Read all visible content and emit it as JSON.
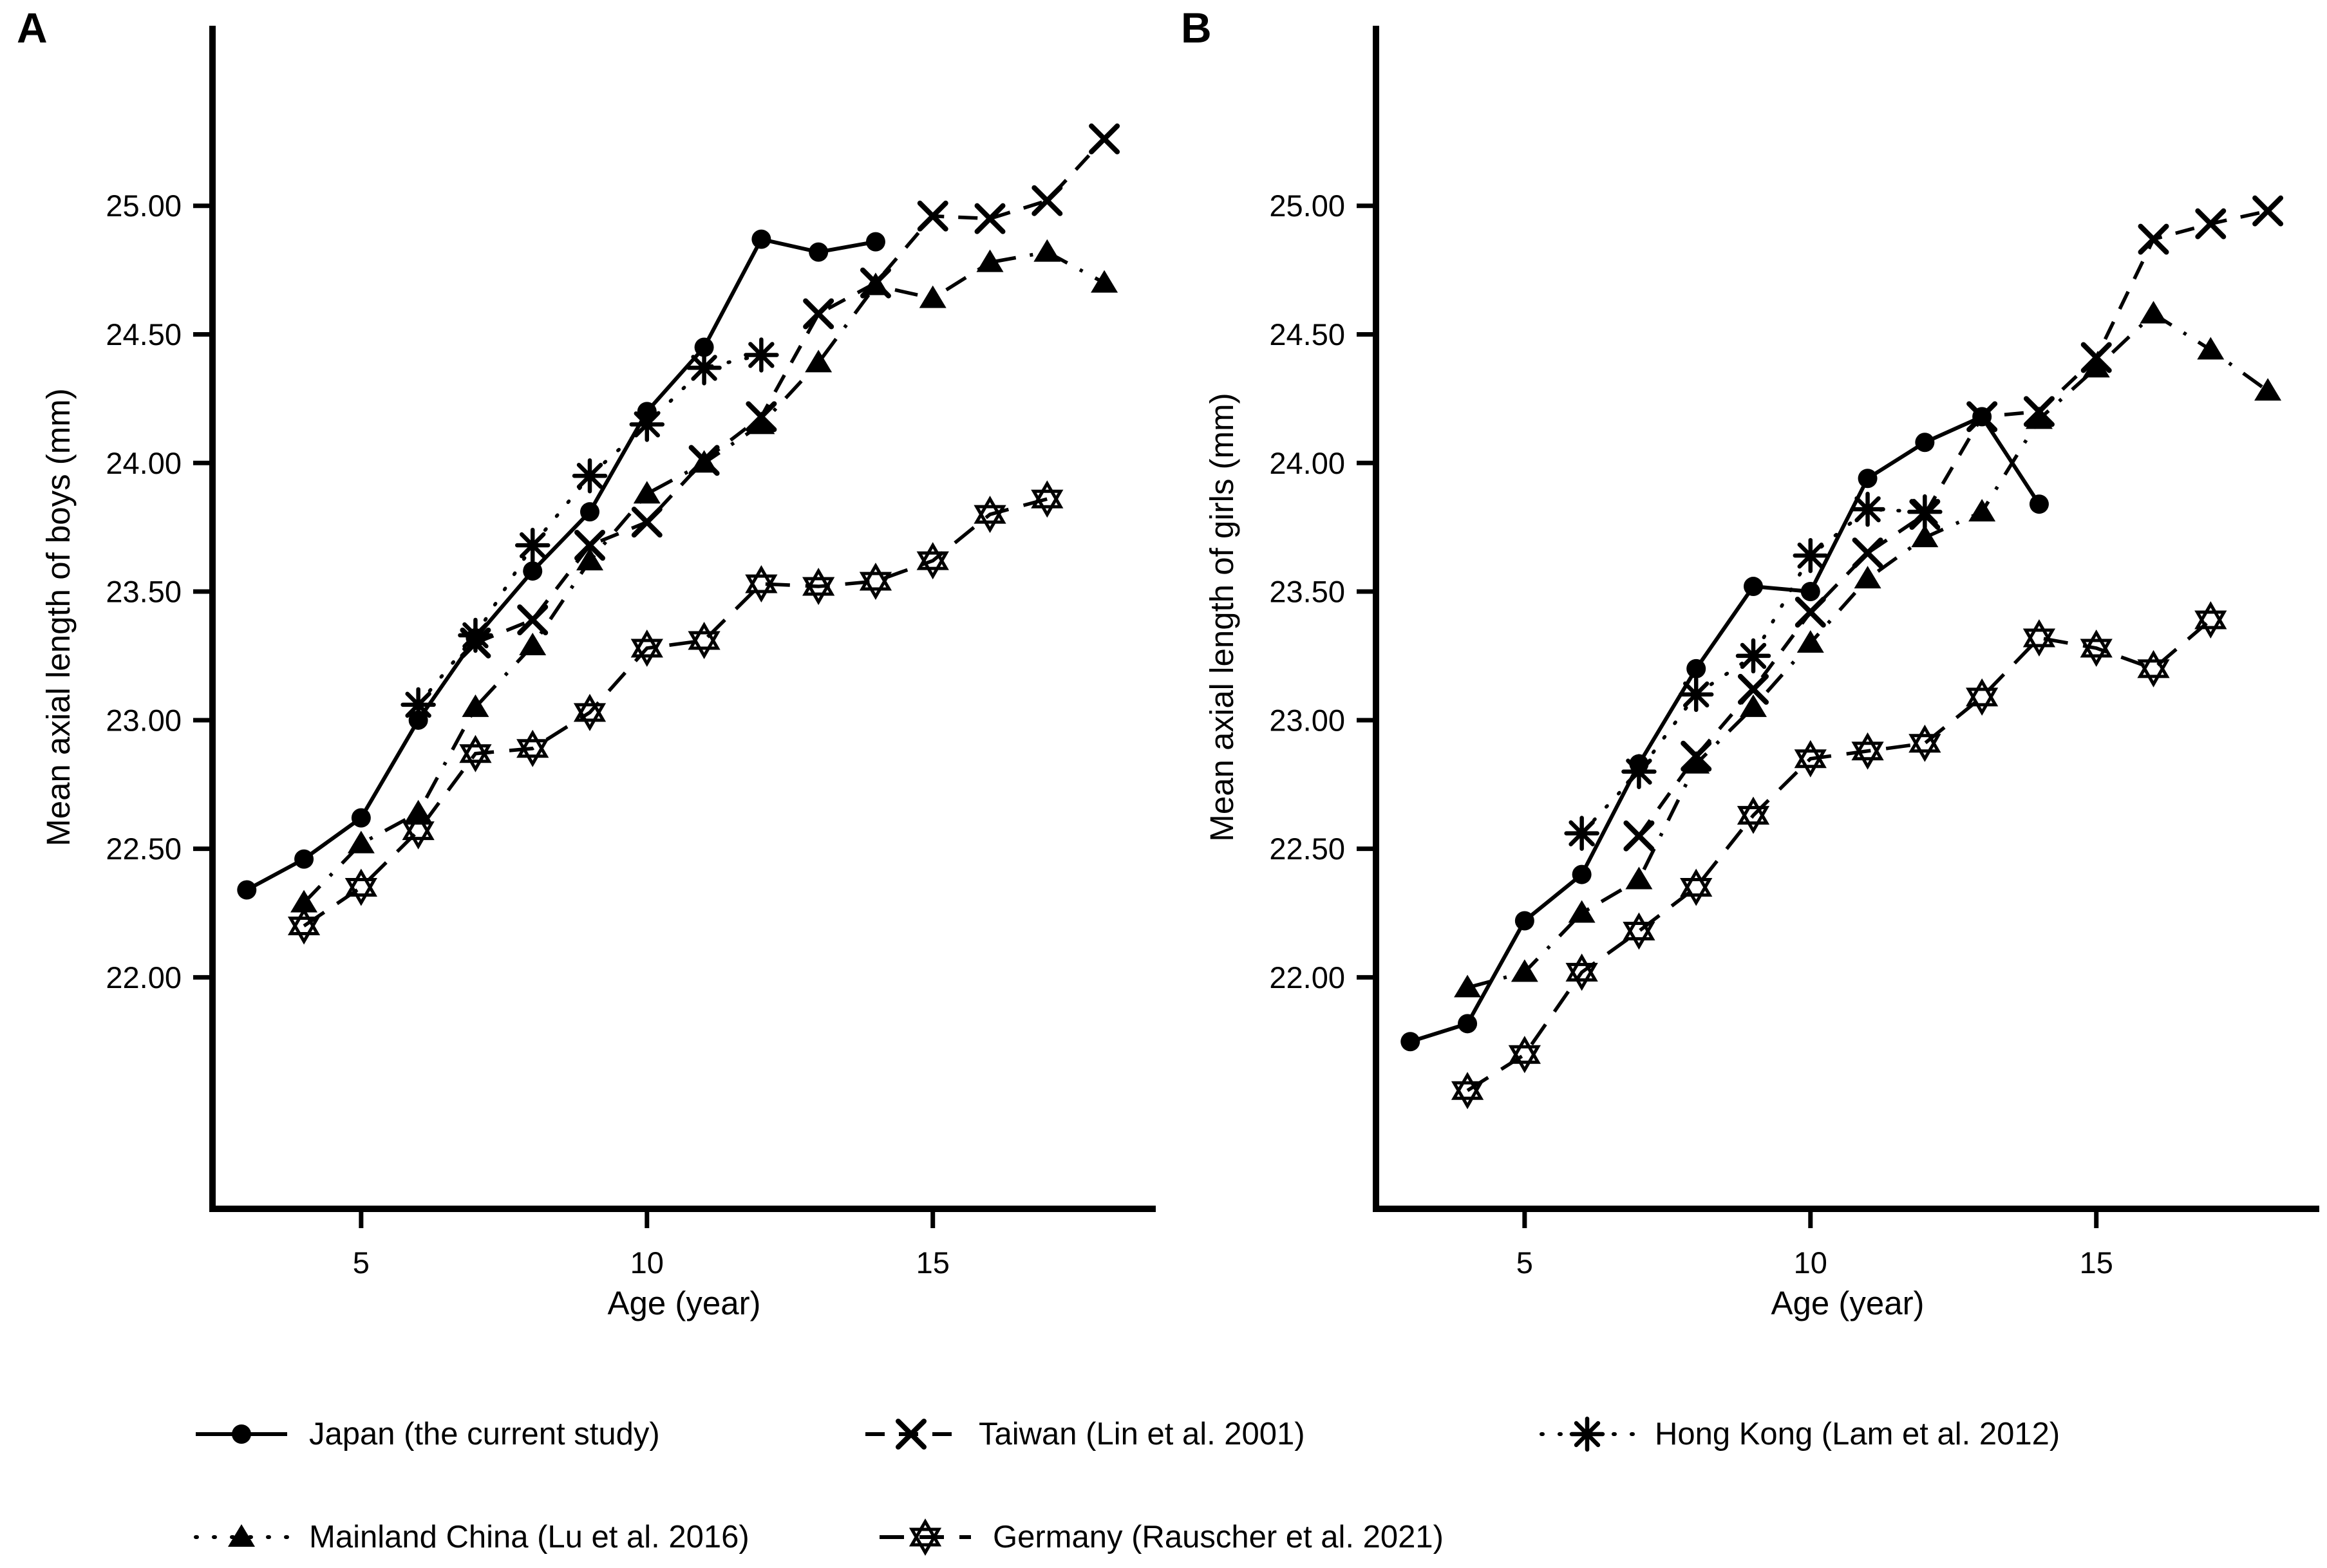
{
  "figure": {
    "background": "#ffffff",
    "ink": "#000000"
  },
  "chart_data": [
    {
      "type": "line",
      "panel_label": "A",
      "xlabel": "Age (year)",
      "ylabel": "Mean axial length of boys (mm)",
      "xlim": [
        2.4,
        18.9
      ],
      "ylim": [
        21.1,
        25.7
      ],
      "xticks": [
        5,
        10,
        15
      ],
      "xtick_labels": [
        "5",
        "10",
        "15"
      ],
      "yticks": [
        22.0,
        22.5,
        23.0,
        23.5,
        24.0,
        24.5,
        25.0
      ],
      "ytick_labels": [
        "22.00",
        "22.50",
        "23.00",
        "23.50",
        "24.00",
        "24.50",
        "25.00"
      ],
      "grid": false,
      "legend_position": "bottom",
      "series": [
        {
          "id": "japan",
          "name": "Japan (the current study)",
          "marker": "circle-filled",
          "line": "solid",
          "x": [
            3,
            4,
            5,
            6,
            7,
            8,
            9,
            10,
            11,
            12,
            13,
            14
          ],
          "y": [
            22.34,
            22.46,
            22.62,
            23.0,
            23.32,
            23.58,
            23.81,
            24.2,
            24.45,
            24.87,
            24.82,
            24.86
          ]
        },
        {
          "id": "taiwan",
          "name": "Taiwan (Lin et al. 2001)",
          "marker": "x",
          "line": "dashed",
          "x": [
            7,
            8,
            9,
            10,
            11,
            12,
            13,
            14,
            15,
            16,
            17,
            18
          ],
          "y": [
            23.3,
            23.39,
            23.68,
            23.77,
            24.01,
            24.18,
            24.58,
            24.7,
            24.96,
            24.95,
            25.02,
            25.26
          ]
        },
        {
          "id": "hongkong",
          "name": "Hong Kong (Lam et al. 2012)",
          "marker": "asterisk",
          "line": "dotted",
          "x": [
            6,
            7,
            8,
            9,
            10,
            11,
            12
          ],
          "y": [
            23.06,
            23.33,
            23.68,
            23.95,
            24.15,
            24.37,
            24.42
          ]
        },
        {
          "id": "china",
          "name": "Mainland China (Lu et al. 2016)",
          "marker": "triangle-filled",
          "line": "dashdot",
          "x": [
            4,
            5,
            6,
            7,
            8,
            9,
            10,
            11,
            12,
            13,
            14,
            15,
            16,
            17,
            18
          ],
          "y": [
            22.29,
            22.52,
            22.64,
            23.05,
            23.29,
            23.62,
            23.88,
            24.0,
            24.15,
            24.39,
            24.69,
            24.64,
            24.78,
            24.82,
            24.7
          ]
        },
        {
          "id": "germany",
          "name": "Germany (Rauscher et al. 2021)",
          "marker": "hexagram-open",
          "line": "longdash",
          "x": [
            4,
            5,
            6,
            7,
            8,
            9,
            10,
            11,
            12,
            13,
            14,
            15,
            16,
            17
          ],
          "y": [
            22.2,
            22.35,
            22.57,
            22.87,
            22.89,
            23.03,
            23.28,
            23.31,
            23.53,
            23.52,
            23.54,
            23.62,
            23.8,
            23.86
          ]
        }
      ]
    },
    {
      "type": "line",
      "panel_label": "B",
      "xlabel": "Age (year)",
      "ylabel": "Mean axial length of girls (mm)",
      "xlim": [
        2.4,
        18.9
      ],
      "ylim": [
        21.1,
        25.7
      ],
      "xticks": [
        5,
        10,
        15
      ],
      "xtick_labels": [
        "5",
        "10",
        "15"
      ],
      "yticks": [
        22.0,
        22.5,
        23.0,
        23.5,
        24.0,
        24.5,
        25.0
      ],
      "ytick_labels": [
        "22.00",
        "22.50",
        "23.00",
        "23.50",
        "24.00",
        "24.50",
        "25.00"
      ],
      "grid": false,
      "legend_position": "bottom",
      "series": [
        {
          "id": "japan",
          "name": "Japan (the current study)",
          "marker": "circle-filled",
          "line": "solid",
          "x": [
            3,
            4,
            5,
            6,
            7,
            8,
            9,
            10,
            11,
            12,
            13,
            14
          ],
          "y": [
            21.75,
            21.82,
            22.22,
            22.4,
            22.83,
            23.2,
            23.52,
            23.5,
            23.94,
            24.08,
            24.18,
            23.84
          ]
        },
        {
          "id": "taiwan",
          "name": "Taiwan (Lin et al. 2001)",
          "marker": "x",
          "line": "dashed",
          "x": [
            7,
            8,
            9,
            10,
            11,
            12,
            13,
            14,
            15,
            16,
            17,
            18
          ],
          "y": [
            22.55,
            22.86,
            23.12,
            23.42,
            23.65,
            23.8,
            24.18,
            24.2,
            24.41,
            24.87,
            24.93,
            24.98
          ]
        },
        {
          "id": "hongkong",
          "name": "Hong Kong (Lam et al. 2012)",
          "marker": "asterisk",
          "line": "dotted",
          "x": [
            6,
            7,
            8,
            9,
            10,
            11,
            12
          ],
          "y": [
            22.56,
            22.8,
            23.1,
            23.25,
            23.64,
            23.82,
            23.81
          ]
        },
        {
          "id": "china",
          "name": "Mainland China (Lu et al. 2016)",
          "marker": "triangle-filled",
          "line": "dashdot",
          "x": [
            4,
            5,
            6,
            7,
            8,
            9,
            10,
            11,
            12,
            13,
            14,
            15,
            16,
            17,
            18
          ],
          "y": [
            21.96,
            22.02,
            22.25,
            22.38,
            22.83,
            23.05,
            23.3,
            23.55,
            23.71,
            23.81,
            24.17,
            24.37,
            24.58,
            24.44,
            24.28
          ]
        },
        {
          "id": "germany",
          "name": "Germany (Rauscher et al. 2021)",
          "marker": "hexagram-open",
          "line": "longdash",
          "x": [
            4,
            5,
            6,
            7,
            8,
            9,
            10,
            11,
            12,
            13,
            14,
            15,
            16,
            17
          ],
          "y": [
            21.56,
            21.7,
            22.02,
            22.18,
            22.35,
            22.63,
            22.85,
            22.88,
            22.91,
            23.09,
            23.32,
            23.28,
            23.2,
            23.39
          ]
        }
      ]
    }
  ],
  "legend": {
    "items": [
      {
        "id": "japan",
        "label": "Japan (the current study)",
        "marker": "circle-filled",
        "line": "solid"
      },
      {
        "id": "taiwan",
        "label": "Taiwan (Lin et al. 2001)",
        "marker": "x",
        "line": "dashed"
      },
      {
        "id": "hongkong",
        "label": "Hong Kong (Lam et al. 2012)",
        "marker": "asterisk",
        "line": "dotted-legend"
      },
      {
        "id": "china",
        "label": "Mainland China (Lu et al. 2016)",
        "marker": "triangle-filled",
        "line": "dotted-legend"
      },
      {
        "id": "germany",
        "label": "Germany (Rauscher et al. 2021)",
        "marker": "hexagram-open",
        "line": "longdash"
      }
    ]
  }
}
